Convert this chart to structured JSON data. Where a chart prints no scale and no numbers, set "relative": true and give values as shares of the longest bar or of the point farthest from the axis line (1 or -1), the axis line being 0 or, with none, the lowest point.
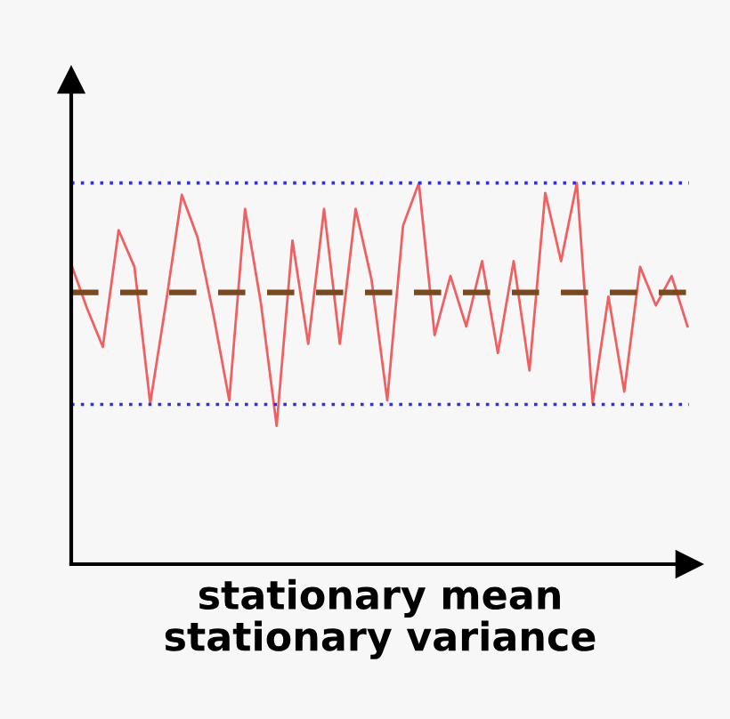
{
  "chart_data": {
    "type": "line",
    "relative": true,
    "xlabel": "stationary mean\nstationary variance",
    "categories": [
      null,
      null,
      null,
      null,
      null,
      null,
      null,
      null,
      null,
      null,
      null,
      null,
      null,
      null,
      null,
      null,
      null,
      null,
      null,
      null,
      null,
      null,
      null,
      null,
      null,
      null,
      null,
      null,
      null,
      null,
      null,
      null,
      null,
      null,
      null,
      null,
      null,
      null,
      null,
      null
    ],
    "series": [
      {
        "color": "#f06060",
        "values": [
          0.787,
          0.671,
          0.57,
          0.876,
          0.78,
          0.422,
          0.686,
          0.969,
          0.857,
          0.655,
          0.43,
          0.932,
          0.686,
          0.363,
          0.849,
          0.578,
          0.932,
          0.578,
          0.932,
          0.748,
          0.43,
          0.888,
          1.0,
          0.601,
          0.756,
          0.624,
          0.795,
          0.554,
          0.795,
          0.508,
          0.974,
          0.795,
          1.0,
          0.422,
          0.702,
          0.453,
          0.78,
          0.679,
          0.756,
          0.624
        ]
      }
    ],
    "ref_lines": [
      {
        "axis": "y",
        "value": 0.713,
        "color": "#7a4a1e",
        "line_style": "dashed"
      },
      {
        "axis": "y",
        "value": 1.0,
        "color": "#3030e0",
        "line_style": "dotted"
      },
      {
        "axis": "y",
        "value": 0.419,
        "color": "#3030e0",
        "line_style": "dotted"
      }
    ],
    "grid": false,
    "legend": false,
    "marker": "none",
    "line_style": "solid"
  }
}
